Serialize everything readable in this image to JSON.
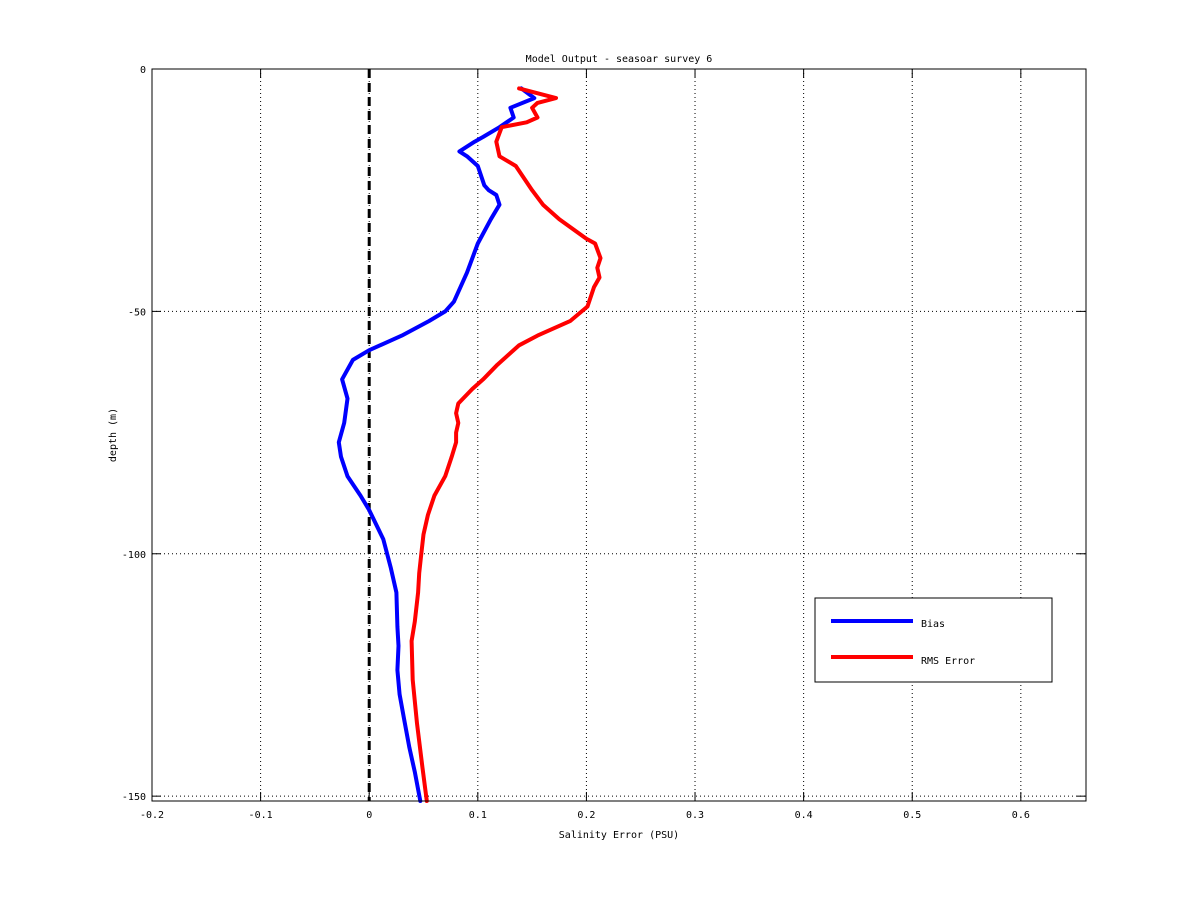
{
  "chart_data": {
    "type": "line",
    "title": "Model Output - seasoar survey 6",
    "xlabel": "Salinity Error  (PSU)",
    "ylabel": "depth (m)",
    "xlim": [
      -0.2,
      0.66
    ],
    "ylim": [
      -151,
      0
    ],
    "xticks": [
      -0.2,
      -0.1,
      0,
      0.1,
      0.2,
      0.3,
      0.4,
      0.5,
      0.6
    ],
    "xtick_labels": [
      "-0.2",
      "-0.1",
      "0",
      "0.1",
      "0.2",
      "0.3",
      "0.4",
      "0.5",
      "0.6"
    ],
    "yticks": [
      0,
      -50,
      -100,
      -150
    ],
    "ytick_labels": [
      "0",
      "-50",
      "-100",
      "-150"
    ],
    "grid": true,
    "legend_position": "lower-right",
    "reference_line": {
      "x": 0,
      "style": "dashed",
      "color": "#000000"
    },
    "series": [
      {
        "name": "Bias",
        "color": "#0000ff",
        "x": [
          0.14,
          0.152,
          0.13,
          0.133,
          0.12,
          0.105,
          0.097,
          0.09,
          0.083,
          0.09,
          0.1,
          0.106,
          0.11,
          0.117,
          0.12,
          0.112,
          0.1,
          0.09,
          0.078,
          0.07,
          0.055,
          0.03,
          0.0,
          -0.015,
          -0.025,
          -0.02,
          -0.023,
          -0.028,
          -0.026,
          -0.02,
          -0.008,
          0.0,
          0.013,
          0.02,
          0.025,
          0.026,
          0.027,
          0.026,
          0.028,
          0.032,
          0.037,
          0.042,
          0.047
        ],
        "y": [
          -4,
          -6,
          -8,
          -10,
          -12,
          -14,
          -15,
          -16,
          -17,
          -18,
          -20,
          -24,
          -25,
          -26,
          -28,
          -31,
          -36,
          -42,
          -48,
          -50,
          -52,
          -55,
          -58,
          -60,
          -64,
          -68,
          -73,
          -77,
          -80,
          -84,
          -88,
          -91,
          -97,
          -103,
          -108,
          -115,
          -119,
          -124,
          -129,
          -134,
          -140,
          -145,
          -151
        ]
      },
      {
        "name": "RMS Error",
        "color": "#ff0000",
        "x": [
          0.138,
          0.172,
          0.155,
          0.15,
          0.155,
          0.145,
          0.122,
          0.117,
          0.12,
          0.135,
          0.15,
          0.16,
          0.175,
          0.2,
          0.208,
          0.213,
          0.21,
          0.212,
          0.207,
          0.201,
          0.185,
          0.155,
          0.138,
          0.118,
          0.105,
          0.095,
          0.082,
          0.08,
          0.082,
          0.08,
          0.08,
          0.076,
          0.07,
          0.06,
          0.054,
          0.05,
          0.048,
          0.046,
          0.045,
          0.042,
          0.039,
          0.04,
          0.044,
          0.049,
          0.053
        ],
        "y": [
          -4,
          -6,
          -7,
          -8,
          -10,
          -11,
          -12,
          -15,
          -18,
          -20,
          -25,
          -28,
          -31,
          -35,
          -36,
          -39,
          -41,
          -43,
          -45,
          -49,
          -52,
          -55,
          -57,
          -61,
          -64,
          -66,
          -69,
          -71,
          -73,
          -75,
          -77,
          -80,
          -84,
          -88,
          -92,
          -96,
          -100,
          -104,
          -108,
          -114,
          -118,
          -126,
          -135,
          -144,
          -151
        ]
      }
    ]
  }
}
